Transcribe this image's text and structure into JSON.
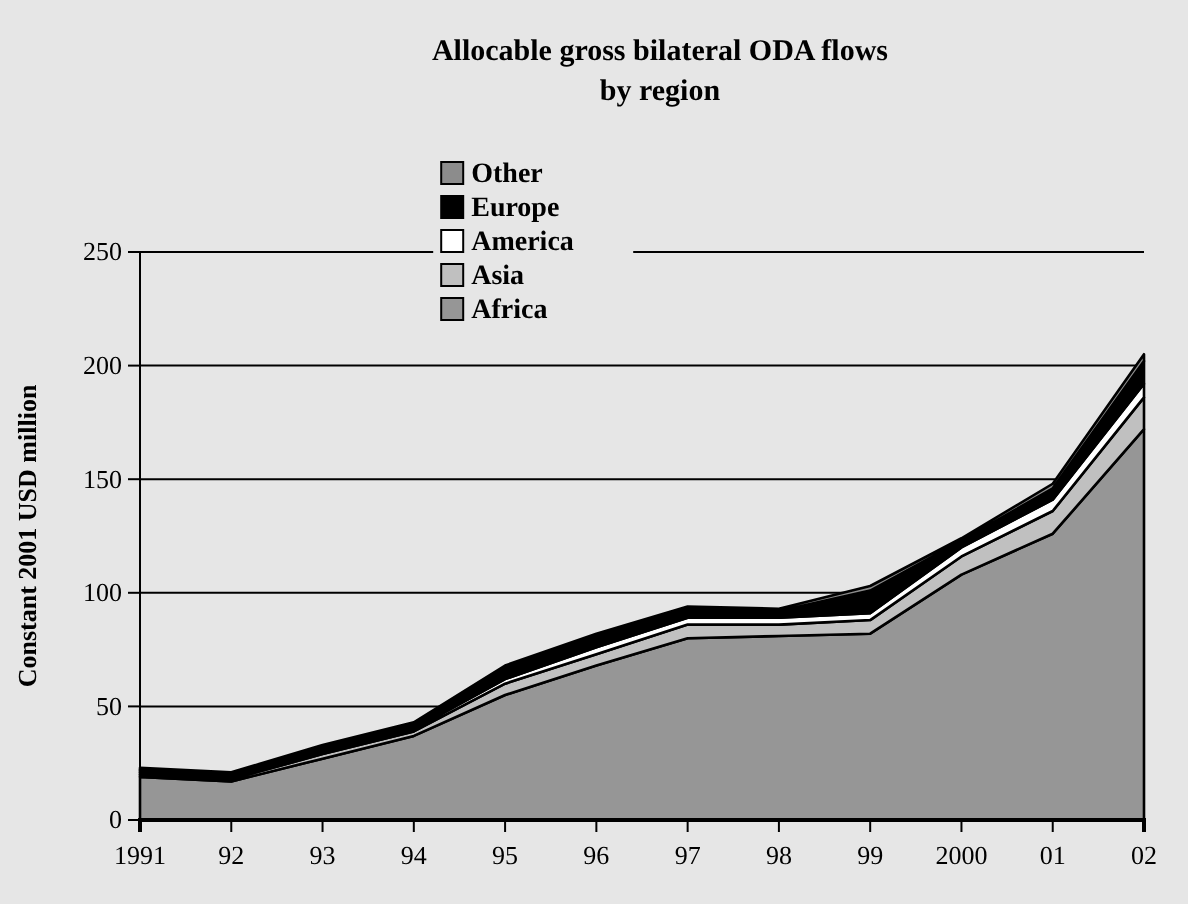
{
  "chart_data": {
    "type": "area",
    "stacked": true,
    "title": "Allocable gross bilateral ODA flows",
    "subtitle": "by region",
    "ylabel": "Constant 2001 USD million",
    "categories": [
      "1991",
      "92",
      "93",
      "94",
      "95",
      "96",
      "97",
      "98",
      "99",
      "2000",
      "01",
      "02"
    ],
    "series": [
      {
        "name": "Africa",
        "color": "#969696",
        "values": [
          19,
          17,
          27,
          37,
          55,
          68,
          80,
          81,
          82,
          108,
          126,
          172
        ]
      },
      {
        "name": "Asia",
        "color": "#c0c0c0",
        "values": [
          1,
          1,
          2,
          2,
          5,
          5,
          6,
          5,
          6,
          8,
          10,
          14
        ]
      },
      {
        "name": "America",
        "color": "#ffffff",
        "values": [
          1,
          1,
          1,
          1,
          2,
          3,
          3,
          3,
          3,
          4,
          5,
          6
        ]
      },
      {
        "name": "Europe",
        "color": "#000000",
        "values": [
          1,
          1,
          2,
          2,
          5,
          5,
          4,
          3,
          10,
          3,
          5,
          10
        ]
      },
      {
        "name": "Other",
        "color": "#8c8c8c",
        "values": [
          1,
          1,
          1,
          1,
          1,
          1,
          1,
          1,
          2,
          1,
          2,
          3
        ]
      }
    ],
    "ylim": [
      0,
      250
    ],
    "yticks": [
      0,
      50,
      100,
      150,
      200,
      250
    ],
    "grid": "y",
    "legend": "top"
  }
}
